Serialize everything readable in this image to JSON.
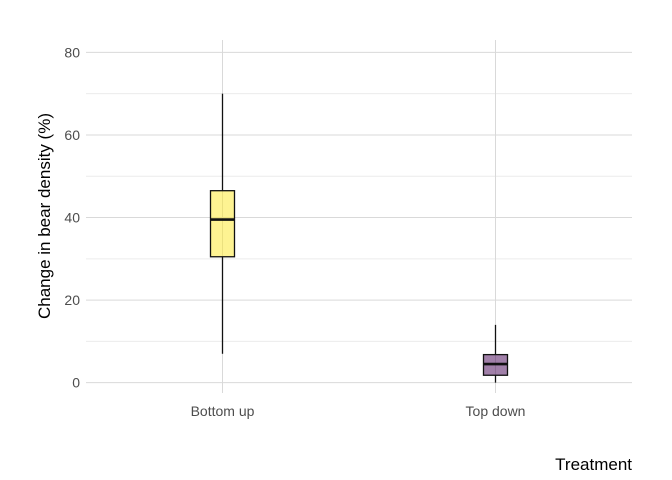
{
  "chart_data": {
    "type": "boxplot",
    "title": "",
    "xlabel": "Treatment",
    "ylabel": "Change in bear density (%)",
    "categories": [
      "Bottom up",
      "Top down"
    ],
    "ylim": [
      -2.5,
      83
    ],
    "yticks": [
      0,
      20,
      40,
      60,
      80
    ],
    "grid": true,
    "legend": "none",
    "boxes": [
      {
        "category": "Bottom up",
        "min": 7,
        "q1": 30.5,
        "median": 39.5,
        "q3": 46.5,
        "max": 70,
        "color": "#FDE725"
      },
      {
        "category": "Top down",
        "min": 0,
        "q1": 1.8,
        "median": 4.5,
        "q3": 6.8,
        "max": 14,
        "color": "#440154"
      }
    ]
  }
}
